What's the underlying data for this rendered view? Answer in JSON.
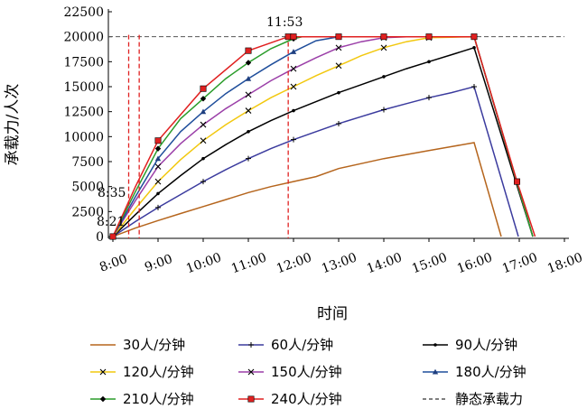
{
  "chart_data": {
    "type": "line",
    "xlabel": "时间",
    "ylabel": "承载力/人次",
    "x_ticks": [
      "8:00",
      "9:00",
      "10:00",
      "11:00",
      "12:00",
      "13:00",
      "14:00",
      "15:00",
      "16:00",
      "17:00",
      "18:00"
    ],
    "xlim": [
      8,
      18.3
    ],
    "ylim": [
      0,
      22500
    ],
    "y_ticks": [
      "0",
      "2500",
      "5000",
      "7500",
      "10000",
      "12500",
      "15000",
      "17500",
      "20000",
      "22500"
    ],
    "grid": false,
    "legend_position": "bottom",
    "static_capacity": {
      "name": "静态承载力",
      "value": 20000
    },
    "annotations": [
      {
        "label": "8:21",
        "x": 8.35
      },
      {
        "label": "8:35",
        "x": 8.583
      },
      {
        "label": "11:53",
        "x": 11.883
      }
    ],
    "series": [
      {
        "name": "30人/分钟",
        "color": "#b5651d",
        "marker": "none",
        "x": [
          8,
          8.5,
          9,
          9.5,
          10,
          10.5,
          11,
          11.5,
          12,
          12.5,
          13,
          13.5,
          14,
          14.5,
          15,
          15.5,
          16,
          16.6
        ],
        "y": [
          0,
          850,
          1600,
          2300,
          3000,
          3700,
          4400,
          5000,
          5500,
          6000,
          6800,
          7300,
          7800,
          8200,
          8600,
          9000,
          9400,
          0
        ]
      },
      {
        "name": "60人/分钟",
        "color": "#3b3b9e",
        "marker": "plus",
        "x": [
          8,
          8.5,
          9,
          9.5,
          10,
          10.5,
          11,
          11.5,
          12,
          12.5,
          13,
          13.5,
          14,
          14.5,
          15,
          15.5,
          16,
          16.98
        ],
        "y": [
          0,
          1500,
          2900,
          4200,
          5500,
          6700,
          7800,
          8800,
          9700,
          10500,
          11300,
          12000,
          12700,
          13300,
          13900,
          14400,
          15000,
          0
        ]
      },
      {
        "name": "90人/分钟",
        "color": "#000000",
        "marker": "dot",
        "x": [
          8,
          8.5,
          9,
          9.5,
          10,
          10.5,
          11,
          11.5,
          12,
          12.5,
          13,
          13.5,
          14,
          14.5,
          15,
          15.5,
          16,
          17.3
        ],
        "y": [
          0,
          2200,
          4300,
          6100,
          7800,
          9200,
          10500,
          11600,
          12600,
          13500,
          14400,
          15200,
          16000,
          16800,
          17500,
          18200,
          18900,
          0
        ]
      },
      {
        "name": "120人/分钟",
        "color": "#f2c80f",
        "marker": "x",
        "x": [
          8,
          8.5,
          9,
          9.5,
          10,
          10.5,
          11,
          11.5,
          12,
          12.5,
          13,
          13.5,
          14,
          14.5,
          15,
          15.5,
          16,
          17.3
        ],
        "y": [
          0,
          2800,
          5500,
          7700,
          9600,
          11200,
          12600,
          13900,
          15000,
          16100,
          17100,
          18100,
          18900,
          19500,
          19900,
          19950,
          20000,
          0
        ]
      },
      {
        "name": "150人/分钟",
        "color": "#9b3fa8",
        "marker": "x",
        "x": [
          8,
          8.5,
          9,
          9.5,
          10,
          10.5,
          11,
          11.5,
          12,
          12.5,
          13,
          13.5,
          14,
          14.5,
          15,
          15.5,
          16,
          17.3
        ],
        "y": [
          0,
          3600,
          7000,
          9300,
          11200,
          12800,
          14200,
          15600,
          16800,
          17900,
          18900,
          19500,
          19900,
          20000,
          20000,
          20000,
          20000,
          0
        ]
      },
      {
        "name": "180人/分钟",
        "color": "#1f4e9b",
        "marker": "triangle",
        "x": [
          8,
          8.5,
          9,
          9.5,
          10,
          10.5,
          11,
          11.5,
          12,
          12.5,
          13,
          14,
          15,
          16,
          17.3
        ],
        "y": [
          0,
          4000,
          7800,
          10500,
          12500,
          14300,
          15800,
          17200,
          18500,
          19600,
          20000,
          20000,
          20000,
          20000,
          0
        ]
      },
      {
        "name": "210人/分钟",
        "color": "#2a9c2a",
        "marker": "diamond",
        "x": [
          8,
          8.5,
          9,
          9.5,
          10,
          10.5,
          11,
          11.5,
          12,
          12.2,
          13,
          14,
          15,
          16,
          17.3
        ],
        "y": [
          0,
          4500,
          8800,
          11800,
          13800,
          15800,
          17400,
          18800,
          19800,
          20000,
          20000,
          20000,
          20000,
          20000,
          0
        ]
      },
      {
        "name": "240人/分钟",
        "color": "#e02020",
        "marker": "square",
        "x": [
          8,
          8.5,
          9,
          10,
          11,
          11.883,
          12,
          13,
          14,
          15,
          16,
          16.95,
          17.35
        ],
        "y": [
          0,
          5000,
          9600,
          14800,
          18600,
          20000,
          20000,
          20000,
          20000,
          20000,
          20000,
          5500,
          0
        ]
      }
    ]
  }
}
